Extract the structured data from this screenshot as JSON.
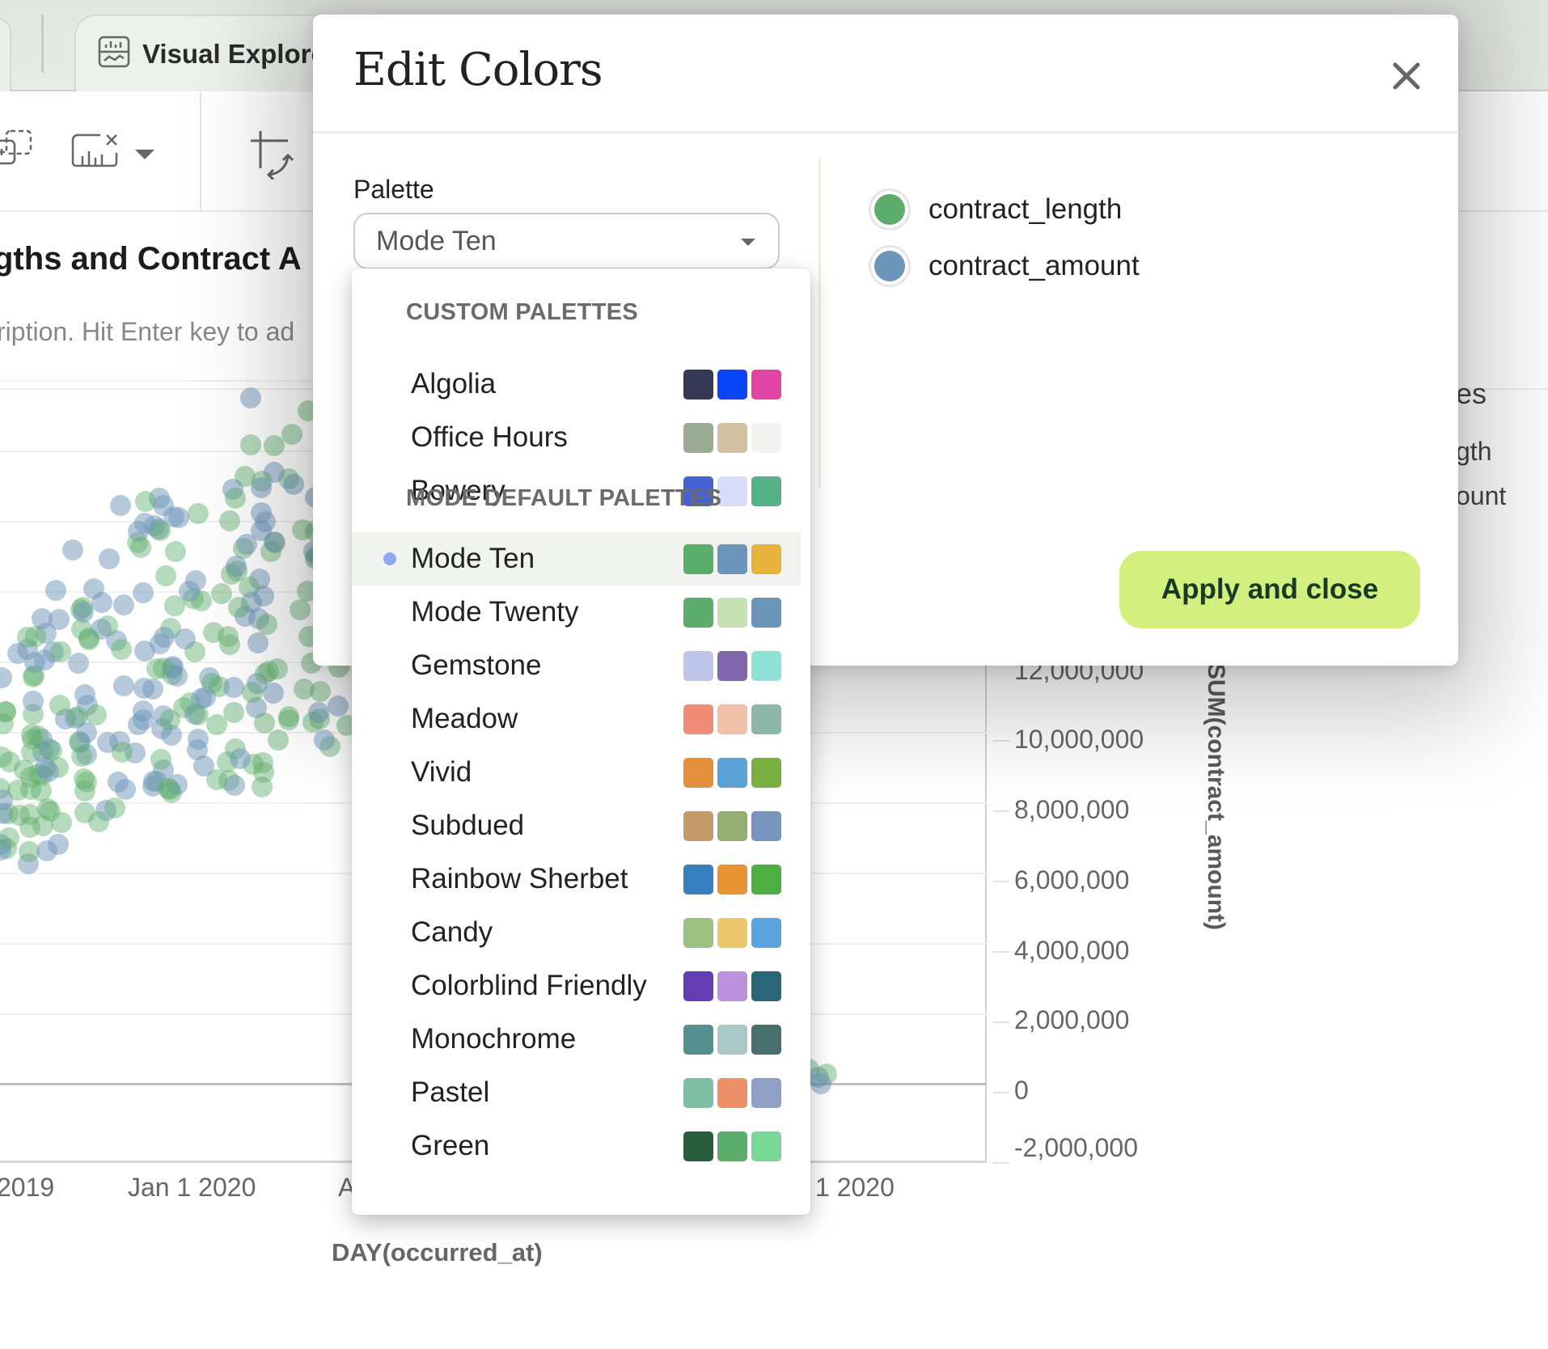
{
  "tabbar": {
    "active_tab": {
      "label": "Visual Explorer",
      "icon": "chart-monitor-icon"
    }
  },
  "toolbar": {
    "icons": [
      "add-layer-icon",
      "remove-chart-icon",
      "dropdown-caret-icon",
      "swap-axes-icon"
    ]
  },
  "report": {
    "title": "Contract Lengths and Contract Amounts",
    "title_visible": "gths and Contract A",
    "description_visible": "ription. Hit Enter key to ad"
  },
  "legend_panel_partial": {
    "heading": "es",
    "items": [
      "gth",
      "ount"
    ]
  },
  "modal": {
    "title": "Edit Colors",
    "close_icon": "close-icon",
    "palette_label": "Palette",
    "palette_selected": "Mode Ten",
    "series": [
      {
        "name": "contract_length",
        "color": "#5cad6b"
      },
      {
        "name": "contract_amount",
        "color": "#6b95b9"
      }
    ],
    "apply_label": "Apply and close",
    "apply_color": "#d3ef7d"
  },
  "dropdown": {
    "groups": [
      {
        "header": "CUSTOM PALETTES",
        "items": [
          {
            "name": "Algolia",
            "colors": [
              "#363856",
              "#0a46f5",
              "#e345a5"
            ]
          },
          {
            "name": "Office Hours",
            "colors": [
              "#99ab93",
              "#d1c0a0",
              "#f5f3ef"
            ]
          },
          {
            "name": "Bowery",
            "colors": [
              "#4762d0",
              "#d6ddf8",
              "#55b188"
            ]
          }
        ]
      },
      {
        "header": "MODE DEFAULT PALETTES",
        "items": [
          {
            "name": "Mode Ten",
            "colors": [
              "#5cad6b",
              "#6b95b9",
              "#e6b43d"
            ],
            "selected": true
          },
          {
            "name": "Mode Twenty",
            "colors": [
              "#5cad6b",
              "#c6e2b3",
              "#6b95b9"
            ]
          },
          {
            "name": "Gemstone",
            "colors": [
              "#bdc5ea",
              "#7f66ad",
              "#8fe2d6"
            ]
          },
          {
            "name": "Meadow",
            "colors": [
              "#ef8d78",
              "#f0c0a8",
              "#8db8a8"
            ]
          },
          {
            "name": "Vivid",
            "colors": [
              "#e48f3d",
              "#5ba3d5",
              "#7ab042"
            ]
          },
          {
            "name": "Subdued",
            "colors": [
              "#c69a6a",
              "#93ae70",
              "#7795bd"
            ]
          },
          {
            "name": "Rainbow Sherbet",
            "colors": [
              "#3580bd",
              "#e79233",
              "#4fae41"
            ]
          },
          {
            "name": "Candy",
            "colors": [
              "#9bc280",
              "#ecc86d",
              "#5ba4e0"
            ]
          },
          {
            "name": "Colorblind Friendly",
            "colors": [
              "#653db2",
              "#be91df",
              "#2a6678"
            ]
          },
          {
            "name": "Monochrome",
            "colors": [
              "#559090",
              "#a9c8c7",
              "#466f6e"
            ]
          },
          {
            "name": "Pastel",
            "colors": [
              "#7fbfa6",
              "#ee9069",
              "#8fa0c7"
            ]
          },
          {
            "name": "Green",
            "colors": [
              "#285e3c",
              "#5cad6b",
              "#77d897"
            ]
          }
        ]
      }
    ]
  },
  "chart_data": {
    "type": "scatter",
    "title": "Contract Lengths and Contract Amounts",
    "xlabel": "DAY(occurred_at)",
    "ylabel": "SUM(contract_amount)",
    "x_tick_labels_visible": [
      "2019",
      "Jan 1 2020",
      "A",
      "1 2020"
    ],
    "y_ticks": [
      "12,000,000",
      "10,000,000",
      "8,000,000",
      "6,000,000",
      "4,000,000",
      "2,000,000",
      "0",
      "-2,000,000"
    ],
    "ylim": [
      -2000000,
      20000000
    ],
    "grid": true,
    "series": [
      {
        "name": "contract_length",
        "color": "#5cad6b"
      },
      {
        "name": "contract_amount",
        "color": "#6b95b9"
      }
    ]
  }
}
